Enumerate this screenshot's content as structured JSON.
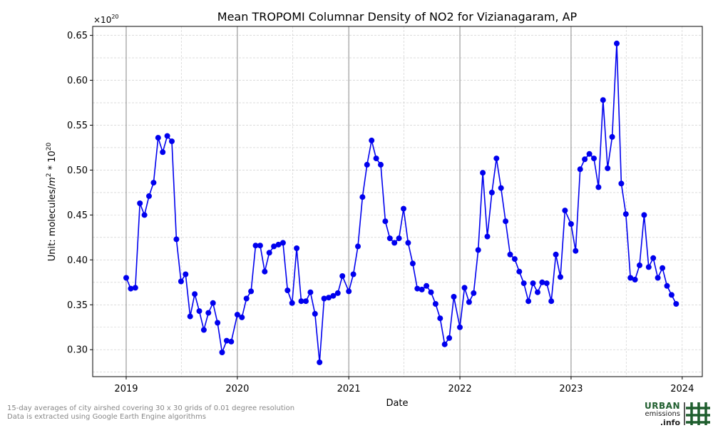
{
  "chart_data": {
    "type": "line",
    "title": "Mean TROPOMI Columnar Density of NO2 for Vizianagaram, AP",
    "xlabel": "Date",
    "ylabel_text": "Unit: molecules/",
    "ylabel_m": "m",
    "ylabel_m_exp": "2",
    "ylabel_times": " * 10",
    "ylabel_exp": "20",
    "offset_base": "×10",
    "offset_exp": "20",
    "grid": true,
    "ylim": [
      0.27,
      0.66
    ],
    "xlim": [
      "2018-09-13",
      "2024-03-07"
    ],
    "y_ticks": [
      0.3,
      0.35,
      0.4,
      0.45,
      0.5,
      0.55,
      0.6,
      0.65
    ],
    "y_tick_labels": [
      "0.30",
      "0.35",
      "0.40",
      "0.45",
      "0.50",
      "0.55",
      "0.60",
      "0.65"
    ],
    "x_ticks": [
      "2019-01-01",
      "2020-01-01",
      "2021-01-01",
      "2022-01-01",
      "2023-01-01",
      "2024-01-01"
    ],
    "x_tick_labels": [
      "2019",
      "2020",
      "2021",
      "2022",
      "2023",
      "2024"
    ],
    "year_lines": [
      "2019-01-01",
      "2020-01-01",
      "2021-01-01",
      "2022-01-01",
      "2023-01-01"
    ],
    "series_color": "#0000ee",
    "x": [
      "2019-01-01",
      "2019-01-16",
      "2019-01-31",
      "2019-02-15",
      "2019-03-02",
      "2019-03-17",
      "2019-04-01",
      "2019-04-16",
      "2019-05-01",
      "2019-05-16",
      "2019-05-31",
      "2019-06-15",
      "2019-06-30",
      "2019-07-15",
      "2019-07-30",
      "2019-08-14",
      "2019-08-29",
      "2019-09-13",
      "2019-09-28",
      "2019-10-13",
      "2019-10-28",
      "2019-11-12",
      "2019-11-27",
      "2019-12-12",
      "2020-01-01",
      "2020-01-16",
      "2020-01-31",
      "2020-02-15",
      "2020-03-01",
      "2020-03-16",
      "2020-03-31",
      "2020-04-15",
      "2020-04-30",
      "2020-05-15",
      "2020-05-30",
      "2020-06-14",
      "2020-06-29",
      "2020-07-14",
      "2020-07-29",
      "2020-08-13",
      "2020-08-28",
      "2020-09-12",
      "2020-09-27",
      "2020-10-12",
      "2020-10-27",
      "2020-11-11",
      "2020-11-26",
      "2020-12-11",
      "2021-01-01",
      "2021-01-16",
      "2021-01-31",
      "2021-02-15",
      "2021-03-02",
      "2021-03-17",
      "2021-04-01",
      "2021-04-16",
      "2021-05-01",
      "2021-05-16",
      "2021-05-31",
      "2021-06-15",
      "2021-06-30",
      "2021-07-15",
      "2021-07-30",
      "2021-08-14",
      "2021-08-29",
      "2021-09-13",
      "2021-09-28",
      "2021-10-13",
      "2021-10-28",
      "2021-11-12",
      "2021-11-27",
      "2021-12-12",
      "2022-01-01",
      "2022-01-16",
      "2022-01-31",
      "2022-02-15",
      "2022-03-02",
      "2022-03-17",
      "2022-04-01",
      "2022-04-16",
      "2022-05-01",
      "2022-05-16",
      "2022-05-31",
      "2022-06-15",
      "2022-06-30",
      "2022-07-15",
      "2022-07-30",
      "2022-08-14",
      "2022-08-29",
      "2022-09-13",
      "2022-09-28",
      "2022-10-13",
      "2022-10-28",
      "2022-11-12",
      "2022-11-27",
      "2022-12-12",
      "2023-01-01",
      "2023-01-16",
      "2023-01-31",
      "2023-02-15",
      "2023-03-02",
      "2023-03-17",
      "2023-04-01",
      "2023-04-16",
      "2023-05-01",
      "2023-05-16",
      "2023-05-31",
      "2023-06-15",
      "2023-06-30",
      "2023-07-15",
      "2023-07-30",
      "2023-08-14",
      "2023-08-29",
      "2023-09-13",
      "2023-09-28",
      "2023-10-13",
      "2023-10-28",
      "2023-11-12",
      "2023-11-27",
      "2023-12-12"
    ],
    "values": [
      0.38,
      0.368,
      0.369,
      0.463,
      0.45,
      0.471,
      0.486,
      0.536,
      0.52,
      0.538,
      0.532,
      0.423,
      0.376,
      0.384,
      0.337,
      0.362,
      0.343,
      0.322,
      0.341,
      0.352,
      0.33,
      0.297,
      0.31,
      0.309,
      0.339,
      0.336,
      0.357,
      0.365,
      0.416,
      0.416,
      0.387,
      0.408,
      0.415,
      0.417,
      0.419,
      0.366,
      0.352,
      0.413,
      0.354,
      0.354,
      0.364,
      0.34,
      0.286,
      0.357,
      0.358,
      0.36,
      0.363,
      0.382,
      0.365,
      0.384,
      0.415,
      0.47,
      0.506,
      0.533,
      0.513,
      0.506,
      0.443,
      0.424,
      0.419,
      0.424,
      0.457,
      0.419,
      0.396,
      0.368,
      0.367,
      0.371,
      0.364,
      0.351,
      0.335,
      0.306,
      0.313,
      0.359,
      0.325,
      0.369,
      0.353,
      0.363,
      0.411,
      0.497,
      0.426,
      0.475,
      0.513,
      0.48,
      0.443,
      0.406,
      0.401,
      0.387,
      0.374,
      0.354,
      0.374,
      0.364,
      0.375,
      0.374,
      0.354,
      0.406,
      0.381,
      0.455,
      0.44,
      0.41,
      0.501,
      0.512,
      0.518,
      0.513,
      0.481,
      0.578,
      0.502,
      0.537,
      0.641,
      0.485,
      0.451,
      0.38,
      0.378,
      0.394,
      0.45,
      0.392,
      0.402,
      0.38,
      0.391,
      0.371,
      0.361,
      0.351
    ]
  },
  "footnotes": [
    "15-day averages of city airshed covering 30 x 30 grids of 0.01 degree resolution",
    "Data is extracted using Google Earth Engine algorithms"
  ],
  "logo": {
    "line1": "URBAN",
    "line2": "emissions",
    "line3": ".info",
    "color": "#1f5e2e"
  }
}
